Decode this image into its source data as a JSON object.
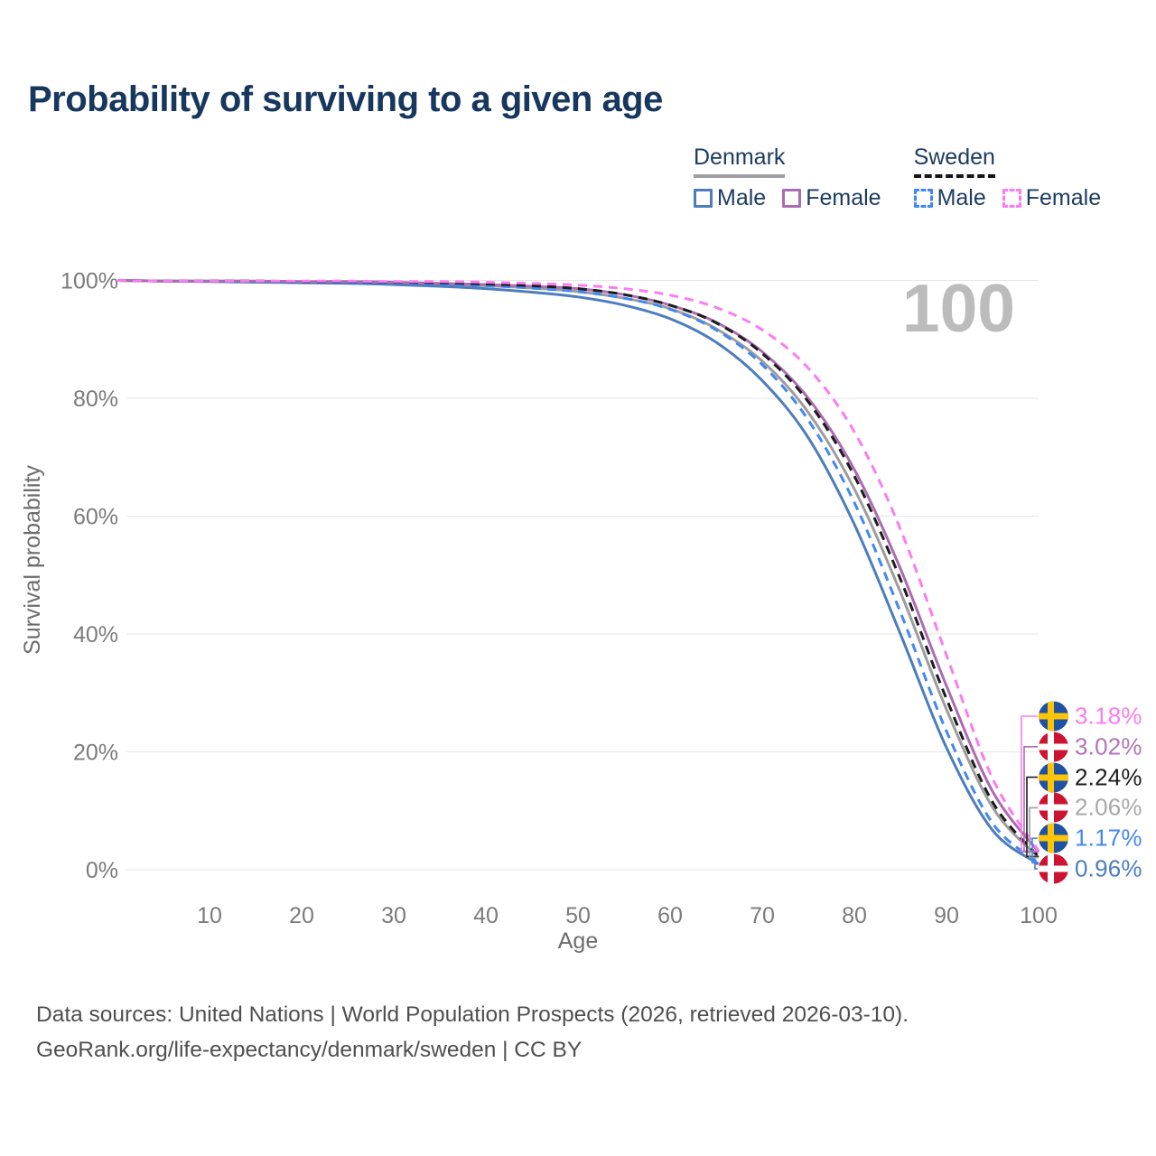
{
  "title": "Probability of surviving to a given age",
  "watermark": "100",
  "legend": {
    "groups": [
      {
        "country": "Denmark",
        "line_style": "solid",
        "underline_color": "#9e9e9e",
        "items": [
          {
            "label": "Male",
            "color": "#4c7dbd"
          },
          {
            "label": "Female",
            "color": "#ab6cb1"
          }
        ]
      },
      {
        "country": "Sweden",
        "line_style": "dashed",
        "underline_color": "#151515",
        "items": [
          {
            "label": "Male",
            "color": "#4487f2"
          },
          {
            "label": "Female",
            "color": "#fb7cf1"
          }
        ]
      }
    ]
  },
  "chart_data": {
    "type": "line",
    "title": "Probability of surviving to a given age",
    "xlabel": "Age",
    "ylabel": "Survival probability",
    "xlim": [
      0,
      100
    ],
    "ylim": [
      0,
      100
    ],
    "grid": "horizontal",
    "x_ticks": [
      {
        "v": 10,
        "label": "10"
      },
      {
        "v": 20,
        "label": "20"
      },
      {
        "v": 30,
        "label": "30"
      },
      {
        "v": 40,
        "label": "40"
      },
      {
        "v": 50,
        "label": "50"
      },
      {
        "v": 60,
        "label": "60"
      },
      {
        "v": 70,
        "label": "70"
      },
      {
        "v": 80,
        "label": "80"
      },
      {
        "v": 90,
        "label": "90"
      },
      {
        "v": 100,
        "label": "100"
      }
    ],
    "y_ticks": [
      {
        "v": 100,
        "label": "100%"
      },
      {
        "v": 80,
        "label": "80%"
      },
      {
        "v": 60,
        "label": "60%"
      },
      {
        "v": 40,
        "label": "40%"
      },
      {
        "v": 20,
        "label": "20%"
      },
      {
        "v": 0,
        "label": "0%"
      }
    ],
    "x": [
      0,
      5,
      10,
      15,
      20,
      25,
      30,
      35,
      40,
      45,
      50,
      55,
      60,
      65,
      70,
      75,
      80,
      85,
      90,
      95,
      100
    ],
    "series": [
      {
        "name": "Sweden Female",
        "country": "Sweden",
        "sex": "Female",
        "flag": "se",
        "color": "#fb7cf1",
        "label_color": "#fb7cf1",
        "dashed": true,
        "end_label": "3.18%",
        "values": [
          100,
          99.9,
          99.9,
          99.9,
          99.9,
          99.9,
          99.8,
          99.8,
          99.7,
          99.5,
          99.2,
          98.6,
          97.5,
          95.4,
          91.6,
          85.1,
          74.3,
          57.8,
          36.4,
          15.5,
          3.18
        ]
      },
      {
        "name": "Denmark Female",
        "country": "Denmark",
        "sex": "Female",
        "flag": "dk",
        "color": "#ab6cb1",
        "label_color": "#b273b8",
        "dashed": false,
        "end_label": "3.02%",
        "values": [
          100,
          99.9,
          99.9,
          99.9,
          99.8,
          99.8,
          99.7,
          99.5,
          99.3,
          99.0,
          98.6,
          97.6,
          95.8,
          92.9,
          87.9,
          80.0,
          67.9,
          51.1,
          31.2,
          13.3,
          3.02
        ]
      },
      {
        "name": "Sweden",
        "country": "Sweden",
        "sex": "Total",
        "flag": "se",
        "color": "#1c1c1c",
        "label_color": "#1c1c1c",
        "dashed": true,
        "end_label": "2.24%",
        "values": [
          100,
          99.9,
          99.9,
          99.9,
          99.8,
          99.8,
          99.7,
          99.6,
          99.4,
          99.1,
          98.6,
          97.6,
          95.8,
          92.8,
          87.6,
          79.4,
          66.8,
          49.3,
          29.0,
          11.5,
          2.24
        ]
      },
      {
        "name": "Denmark",
        "country": "Denmark",
        "sex": "Total",
        "flag": "dk",
        "color": "#9d9d9d",
        "label_color": "#a8a8a8",
        "dashed": false,
        "end_label": "2.06%",
        "values": [
          100,
          99.9,
          99.9,
          99.8,
          99.7,
          99.6,
          99.5,
          99.3,
          99.1,
          98.7,
          98.1,
          97.0,
          95.2,
          91.8,
          86.3,
          77.6,
          64.6,
          47.1,
          27.2,
          10.6,
          2.06
        ]
      },
      {
        "name": "Sweden Male",
        "country": "Sweden",
        "sex": "Male",
        "flag": "se",
        "color": "#4487f2",
        "label_color": "#4487f2",
        "dashed": true,
        "end_label": "1.17%",
        "values": [
          100,
          99.9,
          99.9,
          99.8,
          99.7,
          99.6,
          99.5,
          99.3,
          99.1,
          98.7,
          98.1,
          97.0,
          95.1,
          91.6,
          85.7,
          76.3,
          62.3,
          43.7,
          23.5,
          7.9,
          1.17
        ]
      },
      {
        "name": "Denmark Male",
        "country": "Denmark",
        "sex": "Male",
        "flag": "dk",
        "color": "#4c7dbd",
        "label_color": "#4c7dbd",
        "dashed": false,
        "end_label": "0.96%",
        "values": [
          100,
          99.9,
          99.8,
          99.7,
          99.6,
          99.5,
          99.3,
          99.0,
          98.6,
          98.0,
          97.2,
          95.8,
          93.5,
          89.5,
          83.0,
          73.3,
          58.6,
          40.0,
          20.7,
          6.7,
          0.96
        ]
      }
    ]
  },
  "footer": {
    "line1": "Data sources: United Nations | World Population Prospects (2026, retrieved 2026-03-10).",
    "line2": "GeoRank.org/life-expectancy/denmark/sweden | CC BY"
  }
}
